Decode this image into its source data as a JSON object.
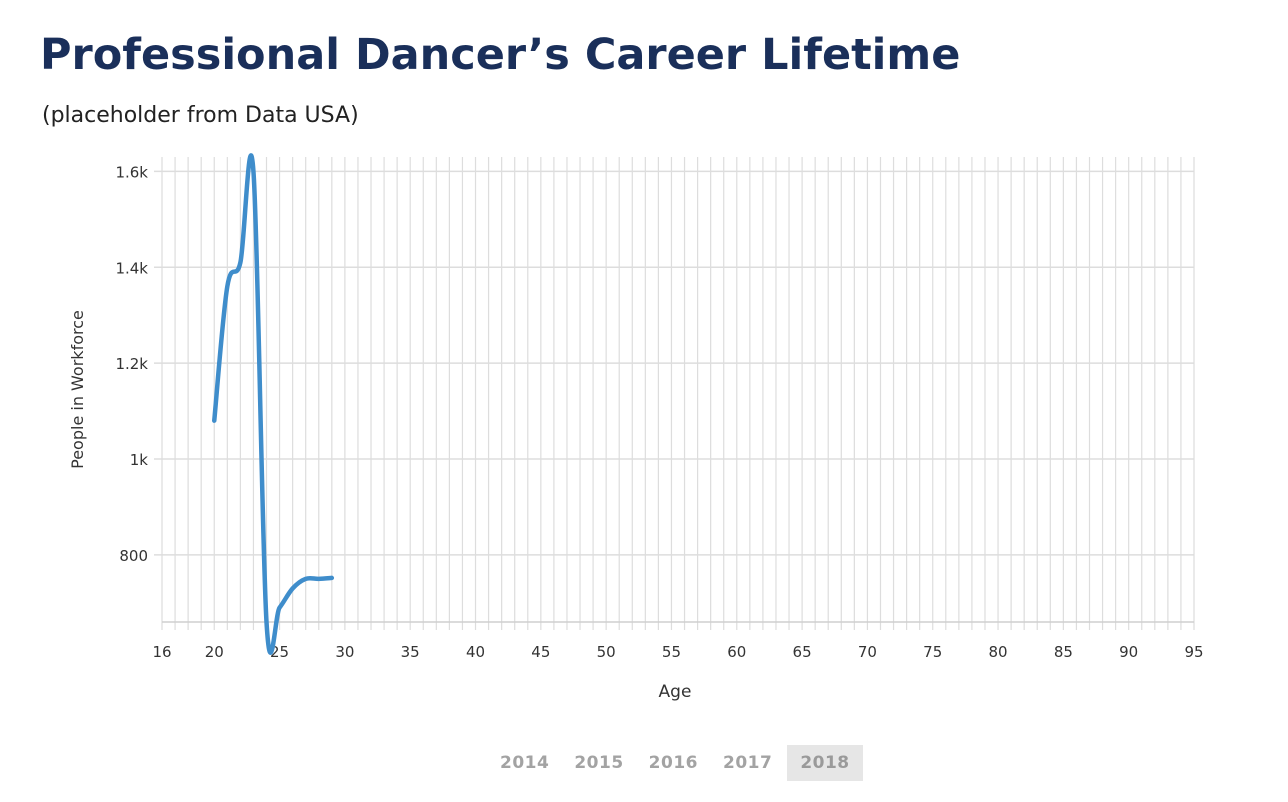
{
  "header": {
    "title": "Professional Dancer’s Career Lifetime",
    "subtitle": "(placeholder from Data USA)"
  },
  "colors": {
    "title": "#1a2f5a",
    "line": "#3f8dcb",
    "grid": "#dddddd",
    "active_year_bg": "#e6e6e6"
  },
  "chart_data": {
    "type": "line",
    "title": "Professional Dancer’s Career Lifetime",
    "xlabel": "Age",
    "ylabel": "People in Workforce",
    "xlim": [
      16,
      95
    ],
    "ylim": [
      660,
      1630
    ],
    "x_ticks": [
      16,
      20,
      25,
      30,
      35,
      40,
      45,
      50,
      55,
      60,
      65,
      70,
      75,
      80,
      85,
      90,
      95
    ],
    "y_ticks": [
      {
        "value": 800,
        "label": "800"
      },
      {
        "value": 1000,
        "label": "1k"
      },
      {
        "value": 1200,
        "label": "1.2k"
      },
      {
        "value": 1400,
        "label": "1.4k"
      },
      {
        "value": 1600,
        "label": "1.6k"
      }
    ],
    "grid": true,
    "series": [
      {
        "x": [
          20,
          21,
          22,
          23,
          24,
          25,
          26,
          27,
          28,
          29
        ],
        "values": [
          1080,
          1360,
          1410,
          1600,
          660,
          690,
          730,
          750,
          750,
          752
        ]
      }
    ]
  },
  "year_selector": {
    "years": [
      "2014",
      "2015",
      "2016",
      "2017",
      "2018"
    ],
    "selected": "2018"
  }
}
